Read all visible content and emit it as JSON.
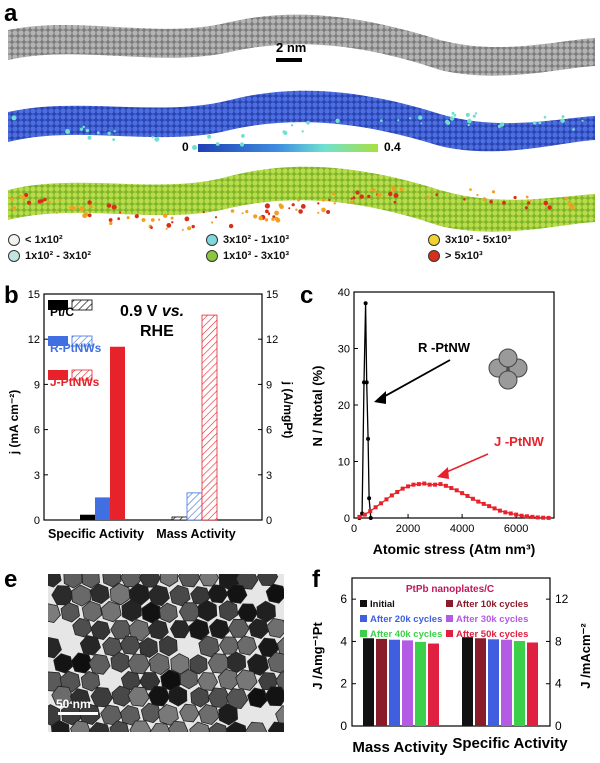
{
  "panels": {
    "a": "a",
    "b": "b",
    "c": "c",
    "e": "e",
    "f": "f"
  },
  "panel_a": {
    "scale_bar": "2 nm",
    "colorbar_min": "0",
    "colorbar_max": "0.4",
    "colors": {
      "gray": "#9a9a9a",
      "blue": "#3d5fd6",
      "green": "#a9d436"
    },
    "legend": [
      {
        "label": "< 1x10²",
        "color": "#f2f2f2"
      },
      {
        "label": "1x10² - 3x10²",
        "color": "#bfe6e0"
      },
      {
        "label": "3x10² - 1x10³",
        "color": "#7fd8e0"
      },
      {
        "label": "1x10³ - 3x10³",
        "color": "#8cc63f"
      },
      {
        "label": "3x10³ - 5x10³",
        "color": "#f2d22e"
      },
      {
        "label": "> 5x10³",
        "color": "#d6301d"
      }
    ]
  },
  "chart_data": [
    {
      "id": "b",
      "type": "bar",
      "categories": [
        "Specific Activity",
        "Mass Activity"
      ],
      "series": [
        {
          "name": "Pt/C",
          "color": "#000000",
          "left_value": 0.35,
          "right_value": 0.2
        },
        {
          "name": "R-PtNWs",
          "color": "#3f6fe0",
          "left_value": 1.5,
          "right_value": 1.8
        },
        {
          "name": "J-PtNWs",
          "color": "#e8222b",
          "left_value": 11.5,
          "right_value": 13.6
        }
      ],
      "annotation": "0.9 V vs. RHE",
      "annotation_parts": [
        "0.9 V ",
        "vs.",
        "RHE"
      ],
      "ylabel_left": "j (mA cm⁻²)",
      "ylabel_right": "j (A/mgPt)",
      "ylim": [
        0,
        15
      ],
      "yticks": [
        "0",
        "3",
        "6",
        "9",
        "12",
        "15"
      ]
    },
    {
      "id": "c",
      "type": "line",
      "xlabel": "Atomic stress (Atm nm³)",
      "ylabel": "N / Ntotal (%)",
      "xlim": [
        0,
        7400
      ],
      "ylim": [
        0,
        40
      ],
      "xticks": [
        "0",
        "2000",
        "4000",
        "6000"
      ],
      "yticks": [
        "0",
        "10",
        "20",
        "30",
        "40"
      ],
      "series": [
        {
          "name": "R -PtNW",
          "color": "#000000",
          "x": [
            200,
            300,
            370,
            430,
            470,
            520,
            560,
            620
          ],
          "y": [
            0,
            0.8,
            24,
            38,
            24,
            14,
            3.5,
            0
          ]
        },
        {
          "name": "J -PtNW",
          "color": "#e8222b",
          "x": [
            200,
            400,
            600,
            800,
            1000,
            1200,
            1400,
            1600,
            1800,
            2000,
            2200,
            2400,
            2600,
            2800,
            3000,
            3200,
            3400,
            3600,
            3800,
            4000,
            4200,
            4400,
            4600,
            4800,
            5000,
            5200,
            5400,
            5600,
            5800,
            6000,
            6200,
            6400,
            6600,
            6800,
            7000,
            7200
          ],
          "y": [
            0.2,
            0.6,
            1.2,
            1.9,
            2.6,
            3.3,
            4.0,
            4.6,
            5.2,
            5.6,
            5.9,
            6.0,
            6.1,
            5.9,
            5.9,
            6.0,
            5.7,
            5.3,
            4.9,
            4.4,
            3.9,
            3.4,
            2.9,
            2.5,
            2.1,
            1.7,
            1.3,
            1.0,
            0.8,
            0.6,
            0.4,
            0.3,
            0.2,
            0.1,
            0.05,
            0.02
          ]
        }
      ]
    },
    {
      "id": "f",
      "type": "bar",
      "title": "PtPb nanoplates/C",
      "categories": [
        "Mass Activity",
        "Specific Activity"
      ],
      "ylabel_left": "J /Amg⁻¹Pt",
      "ylabel_right": "J /mAcm⁻²",
      "ylim_left": [
        0,
        7
      ],
      "yticks_left": [
        "0",
        "2",
        "4",
        "6"
      ],
      "ylim_right": [
        0,
        14
      ],
      "yticks_right": [
        "0",
        "4",
        "8",
        "12"
      ],
      "series": [
        {
          "name": "Initial",
          "color": "#111111",
          "values": [
            4.15,
            4.2
          ]
        },
        {
          "name": "After 10k cycles",
          "color": "#8a1c2a",
          "values": [
            4.12,
            4.15
          ]
        },
        {
          "name": "After 20k cycles",
          "color": "#3f5fe0",
          "values": [
            4.08,
            4.1
          ]
        },
        {
          "name": "After 30k cycles",
          "color": "#b45be6",
          "values": [
            4.05,
            4.08
          ]
        },
        {
          "name": "After 40k cycles",
          "color": "#3cd04a",
          "values": [
            3.98,
            4.02
          ]
        },
        {
          "name": "After 50k cycles",
          "color": "#e02040",
          "values": [
            3.9,
            3.95
          ]
        }
      ]
    }
  ],
  "panel_c": {
    "labels": [
      "R -PtNW",
      "J -PtNW"
    ]
  },
  "panel_e": {
    "scale_bar": "50 nm"
  }
}
